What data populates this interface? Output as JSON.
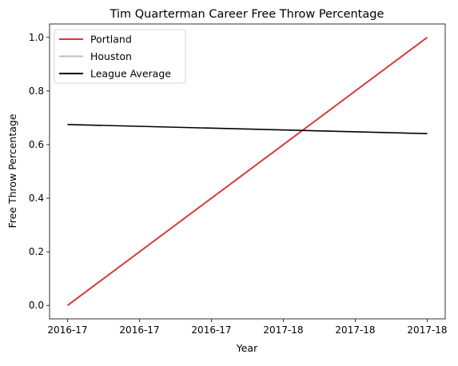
{
  "chart_data": {
    "type": "line",
    "title": "Tim Quarterman Career Free Throw Percentage",
    "xlabel": "Year",
    "ylabel": "Free Throw Percentage",
    "categories": [
      "2016-17",
      "2016-17",
      "2016-17",
      "2017-18",
      "2017-18",
      "2017-18"
    ],
    "ylim": [
      -0.05,
      1.05
    ],
    "yticks": [
      0.0,
      0.2,
      0.4,
      0.6,
      0.8,
      1.0
    ],
    "ytick_labels": [
      "0.0",
      "0.2",
      "0.4",
      "0.6",
      "0.8",
      "1.0"
    ],
    "grid": false,
    "legend_position": "top-left",
    "series": [
      {
        "name": "Portland",
        "color": "#d73a3a",
        "x": [
          0,
          5
        ],
        "values": [
          0.0,
          1.0
        ]
      },
      {
        "name": "Houston",
        "color": "#bfbfbf",
        "x": [],
        "values": []
      },
      {
        "name": "League Average",
        "color": "#000000",
        "x": [
          0,
          5
        ],
        "values": [
          0.675,
          0.641
        ]
      }
    ]
  }
}
